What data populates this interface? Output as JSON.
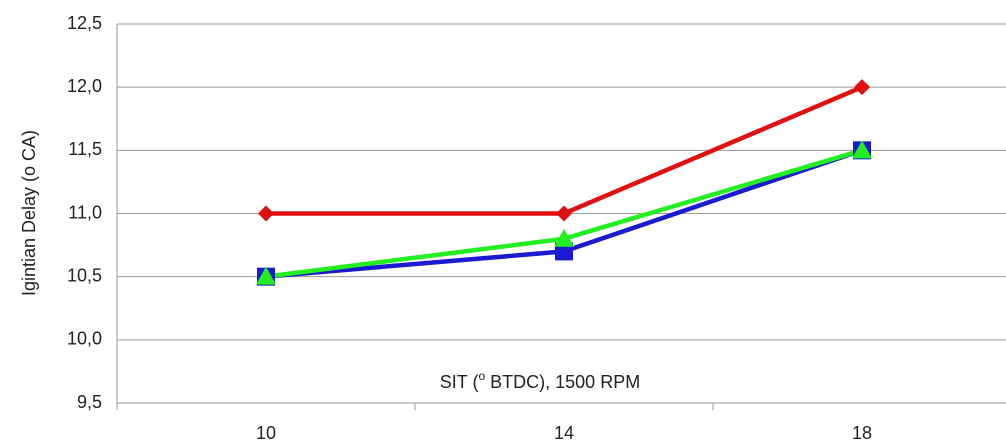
{
  "chart_data": {
    "type": "line",
    "y_label": "Igintian Delay (o CA)",
    "x_label_parts": [
      "SIT (",
      "o",
      " BTDC), 1500 RPM"
    ],
    "categories": [
      "10",
      "14",
      "18"
    ],
    "series": [
      {
        "color": "#e01010",
        "marker": "diamond",
        "values": [
          11,
          11,
          12
        ]
      },
      {
        "color": "#1a1ad0",
        "marker": "square",
        "values": [
          10.5,
          10.7,
          11.5
        ]
      },
      {
        "color": "#22ee22",
        "marker": "triangle",
        "values": [
          10.5,
          10.8,
          11.5
        ]
      }
    ],
    "ylim": [
      9.5,
      12.5
    ],
    "yticks": [
      {
        "value": 9.5,
        "label": "9,5"
      },
      {
        "value": 10,
        "label": "10,0"
      },
      {
        "value": 10.5,
        "label": "10,5"
      },
      {
        "value": 11,
        "label": "11,0"
      },
      {
        "value": 11.5,
        "label": "11,5"
      },
      {
        "value": 12,
        "label": "12,0"
      },
      {
        "value": 12.5,
        "label": "12,5"
      }
    ],
    "grid": true
  }
}
